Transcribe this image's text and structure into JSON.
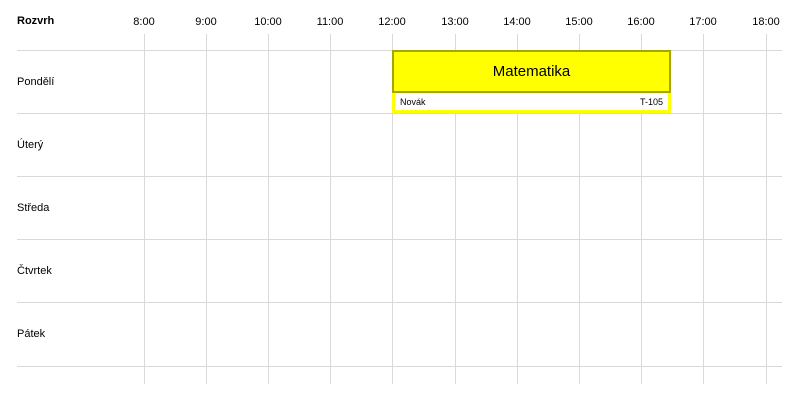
{
  "title": "Rozvrh",
  "times": [
    "8:00",
    "9:00",
    "10:00",
    "11:00",
    "12:00",
    "13:00",
    "14:00",
    "15:00",
    "16:00",
    "17:00",
    "18:00"
  ],
  "days": [
    "Pondělí",
    "Úterý",
    "Středa",
    "Čtvrtek",
    "Pátek"
  ],
  "event": {
    "subject": "Matematika",
    "teacher": "Novák",
    "room": "T-105",
    "day": "Pondělí",
    "start": "12:00",
    "end": "16:30",
    "fill_color": "#ffff00",
    "border_color": "#a6a600"
  }
}
